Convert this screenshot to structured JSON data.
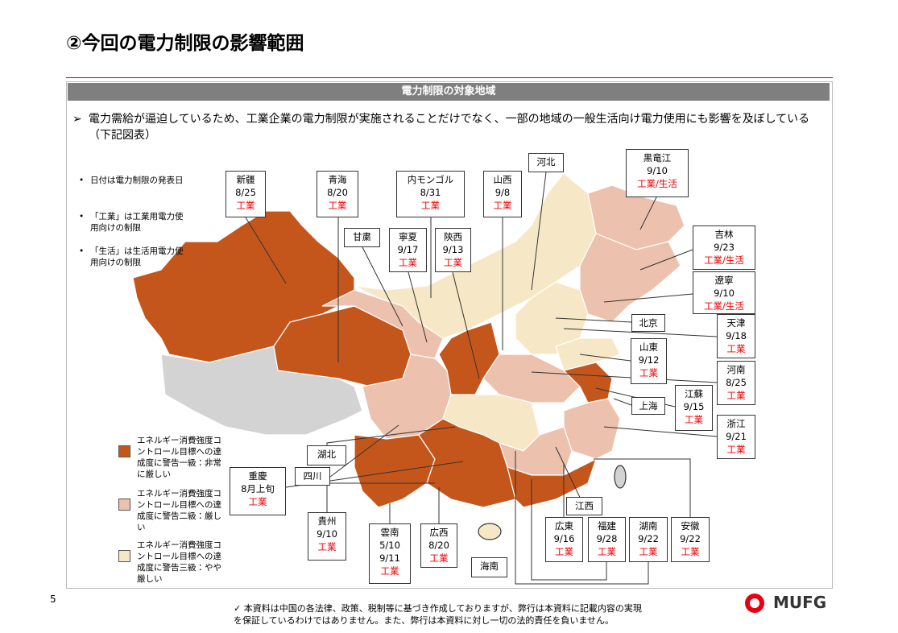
{
  "header": {
    "title": "②今回の電力制限の影響範囲"
  },
  "banner": "電力制限の対象地域",
  "summary": {
    "marker": "➢",
    "text": "電力需給が逼迫しているため、工業企業の電力制限が実施されることだけでなく、一部の地域の一般生活向け電力使用にも影響を及ぼしている（下記図表）"
  },
  "notes": [
    "日付は電力制限の発表日",
    "「工業」は工業用電力使用向けの制限",
    "「生活」は生活用電力使用向けの制限"
  ],
  "legend": [
    {
      "text": "エネルギー消費強度コントロール目標への達成度に警告一級：非常に厳しい",
      "color": "#c5561b"
    },
    {
      "text": "エネルギー消費強度コントロール目標への達成度に警告二級：厳しい",
      "color": "#ecc1ad"
    },
    {
      "text": "エネルギー消費強度コントロール目標への達成度に警告三級：やや厳しい",
      "color": "#f6e8c6"
    }
  ],
  "regions": [
    {
      "name": "新疆",
      "dates": [
        "8/25"
      ],
      "type": "工業"
    },
    {
      "name": "青海",
      "dates": [
        "8/20"
      ],
      "type": "工業"
    },
    {
      "name": "内モンゴル",
      "dates": [
        "8/31"
      ],
      "type": "工業"
    },
    {
      "name": "山西",
      "dates": [
        "9/8"
      ],
      "type": "工業"
    },
    {
      "name": "河北"
    },
    {
      "name": "黒竜江",
      "dates": [
        "9/10"
      ],
      "type": "工業/生活"
    },
    {
      "name": "吉林",
      "dates": [
        "9/23"
      ],
      "type": "工業/生活"
    },
    {
      "name": "遼寧",
      "dates": [
        "9/10"
      ],
      "type": "工業/生活"
    },
    {
      "name": "甘粛"
    },
    {
      "name": "寧夏",
      "dates": [
        "9/17"
      ],
      "type": "工業"
    },
    {
      "name": "陝西",
      "dates": [
        "9/13"
      ],
      "type": "工業"
    },
    {
      "name": "北京"
    },
    {
      "name": "天津",
      "dates": [
        "9/18"
      ],
      "type": "工業"
    },
    {
      "name": "山東",
      "dates": [
        "9/12"
      ],
      "type": "工業"
    },
    {
      "name": "河南",
      "dates": [
        "8/25"
      ],
      "type": "工業"
    },
    {
      "name": "江蘇",
      "dates": [
        "9/15"
      ],
      "type": "工業"
    },
    {
      "name": "上海"
    },
    {
      "name": "浙江",
      "dates": [
        "9/21"
      ],
      "type": "工業"
    },
    {
      "name": "湖北"
    },
    {
      "name": "四川"
    },
    {
      "name": "重慶",
      "dates": [
        "8月上旬"
      ],
      "type": "工業"
    },
    {
      "name": "貴州",
      "dates": [
        "9/10"
      ],
      "type": "工業"
    },
    {
      "name": "雲南",
      "dates": [
        "5/10",
        "9/11"
      ],
      "type": "工業"
    },
    {
      "name": "広西",
      "dates": [
        "8/20"
      ],
      "type": "工業"
    },
    {
      "name": "海南"
    },
    {
      "name": "江西"
    },
    {
      "name": "広東",
      "dates": [
        "9/16"
      ],
      "type": "工業"
    },
    {
      "name": "福建",
      "dates": [
        "9/28"
      ],
      "type": "工業"
    },
    {
      "name": "湖南",
      "dates": [
        "9/22"
      ],
      "type": "工業"
    },
    {
      "name": "安徽",
      "dates": [
        "9/22"
      ],
      "type": "工業"
    }
  ],
  "page_number": "5",
  "disclaimer": [
    "✓ 本資料は中国の各法律、政策、税制等に基づき作成しておりますが、弊行は本資料に記載内容の実現",
    "を保証しているわけではありません。また、弊行は本資料に対し一切の法的責任を負いません。"
  ],
  "logo": "MUFG"
}
